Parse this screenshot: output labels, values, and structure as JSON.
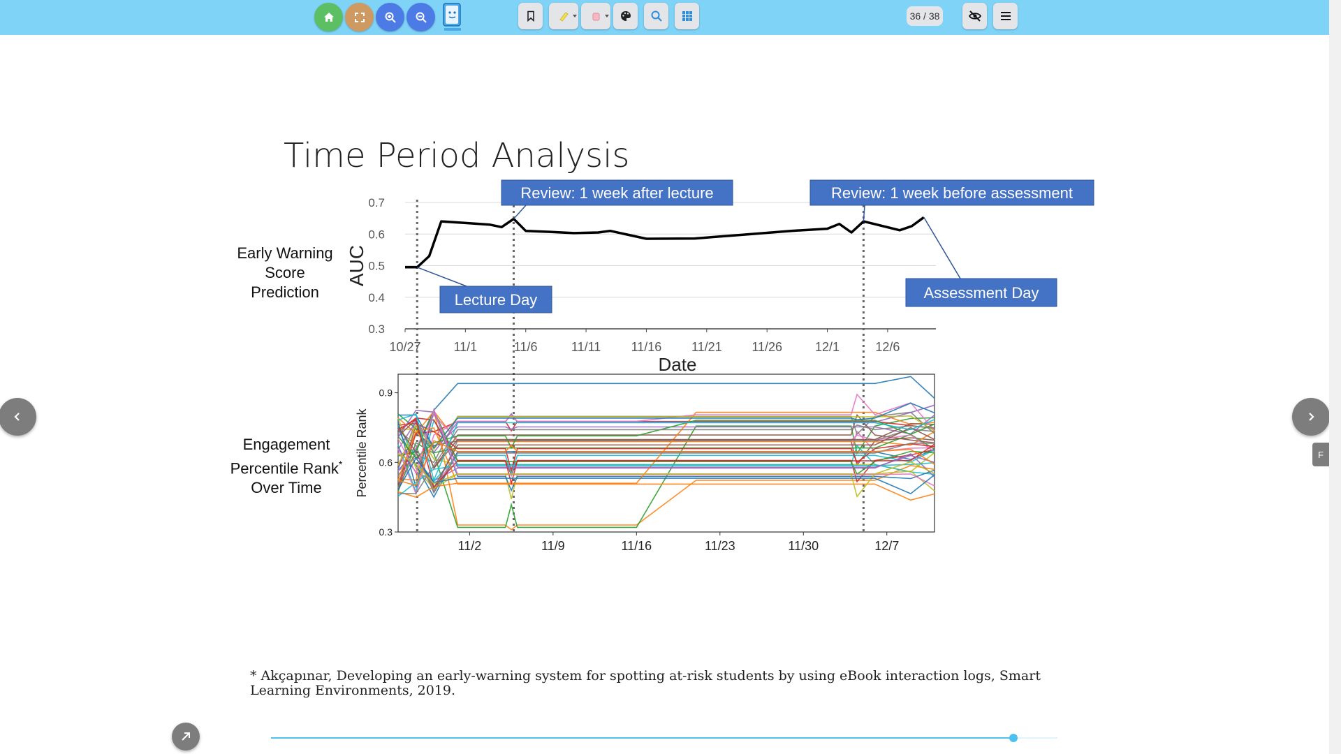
{
  "toolbar": {
    "buttons": [
      {
        "name": "home-button",
        "icon": "home-icon",
        "color": "#5cbf64"
      },
      {
        "name": "fullscreen-button",
        "icon": "fullscreen-icon",
        "color": "#cf9a62"
      },
      {
        "name": "zoom-in-button",
        "icon": "zoom-in-icon",
        "color": "#4d7be6"
      },
      {
        "name": "zoom-out-button",
        "icon": "zoom-out-icon",
        "color": "#4d7be6"
      }
    ],
    "tools": [
      "bookmark-icon",
      "highlighter-icon",
      "eraser-icon",
      "palette-icon",
      "search-icon",
      "grid-icon"
    ],
    "page_counter": "36 / 38",
    "right_buttons": [
      "eye-off-icon",
      "menu-icon"
    ],
    "bar_color": "#7fd3f7"
  },
  "slide": {
    "title": "Time Period Analysis",
    "top_chart_label": [
      "Early Warning",
      "Score",
      "Prediction"
    ],
    "bottom_chart_label_lines": [
      "Engagement",
      "Percentile Rank",
      "Over Time"
    ],
    "asterisk": "*",
    "footnote": "* Akçapınar, Developing an early-warning system for spotting at-risk students by using eBook interaction logs, Smart Learning Environments, 2019."
  },
  "chart_data": [
    {
      "type": "line",
      "xlabel": "Date",
      "ylabel": "AUC",
      "ylim": [
        0.3,
        0.7
      ],
      "yticks": [
        "0.3",
        "0.4",
        "0.5",
        "0.6",
        "0.7"
      ],
      "xticks": [
        "10/27",
        "11/1",
        "11/6",
        "11/11",
        "11/16",
        "11/21",
        "11/26",
        "12/1",
        "12/6"
      ],
      "grid": true,
      "x": [
        "10/27",
        "10/28",
        "10/29",
        "10/30",
        "11/1",
        "11/3",
        "11/4",
        "11/5",
        "11/6",
        "11/8",
        "11/10",
        "11/12",
        "11/13",
        "11/16",
        "11/20",
        "11/24",
        "11/28",
        "12/1",
        "12/2",
        "12/3",
        "12/4",
        "12/7",
        "12/8",
        "12/9"
      ],
      "series": [
        {
          "values": [
            0.495,
            0.495,
            0.53,
            0.64,
            0.635,
            0.63,
            0.622,
            0.648,
            0.61,
            0.607,
            0.603,
            0.605,
            0.61,
            0.585,
            0.586,
            0.598,
            0.61,
            0.617,
            0.632,
            0.605,
            0.64,
            0.612,
            0.625,
            0.653
          ],
          "color": "#000000"
        }
      ],
      "vlines_dashed": [
        "10/28",
        "11/5",
        "12/4"
      ],
      "annotations": [
        {
          "text": "Review: 1 week after lecture",
          "x": "11/5",
          "y": 0.648
        },
        {
          "text": "Review: 1 week before assessment",
          "x": "12/4",
          "y": 0.64
        },
        {
          "text": "Lecture Day",
          "x": "10/28",
          "y": 0.495
        },
        {
          "text": "Assessment Day",
          "x": "12/9",
          "y": 0.653
        }
      ],
      "annotation_color": "#4472c4"
    },
    {
      "type": "line",
      "ylabel": "Percentile Rank",
      "ylim": [
        0.3,
        0.98
      ],
      "yticks": [
        "0.3",
        "0.6",
        "0.9"
      ],
      "xticks": [
        "11/2",
        "11/9",
        "11/16",
        "11/23",
        "11/30",
        "12/7"
      ],
      "xticks_day": [
        6,
        13,
        20,
        27,
        34,
        41
      ],
      "x_day_range": [
        0,
        45
      ],
      "vlines_day": [
        1.5,
        9.5,
        38.5
      ],
      "series_count": 42,
      "typical_range": [
        0.5,
        0.82
      ],
      "outlier_levels": [
        0.94,
        0.33,
        0.32
      ],
      "colors": [
        "#1f77b4",
        "#ff7f0e",
        "#2ca02c",
        "#d62728",
        "#9467bd",
        "#8c564b",
        "#e377c2",
        "#7f7f7f",
        "#bcbd22",
        "#17becf"
      ]
    }
  ],
  "navigation": {
    "prev": "chevron-left-icon",
    "next": "chevron-right-icon",
    "side_tab": "F",
    "expand": "arrow-up-right-icon",
    "progress": 0.944
  }
}
